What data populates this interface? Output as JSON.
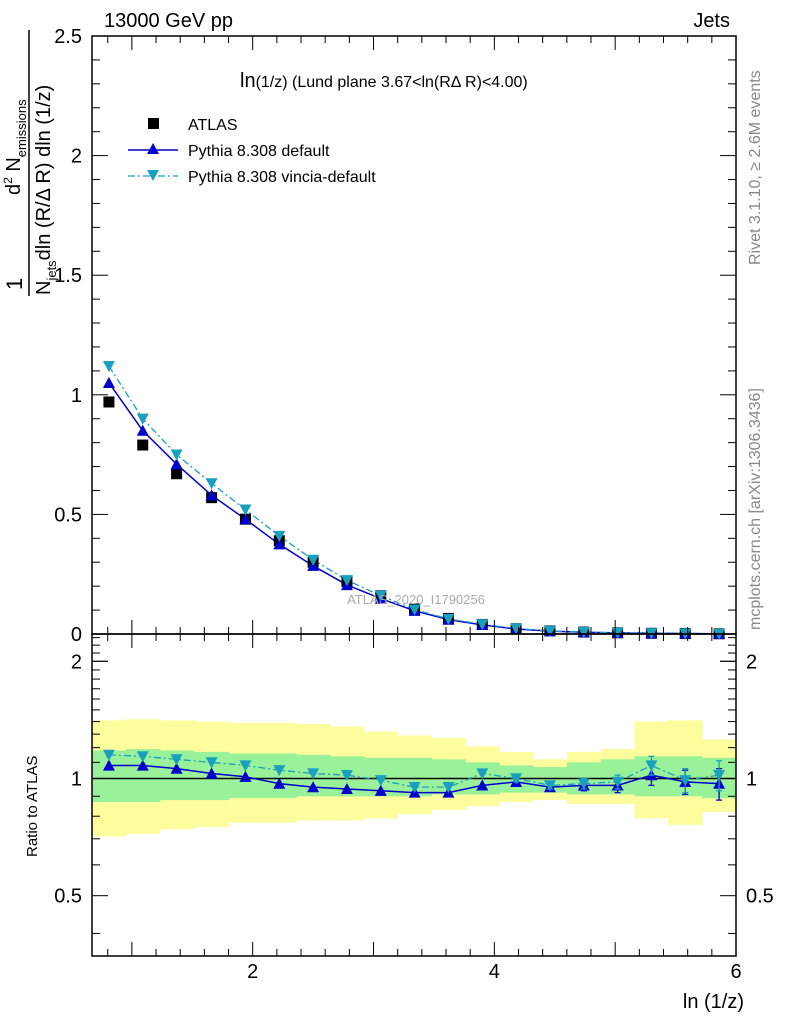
{
  "header": {
    "left": "13000 GeV pp",
    "right": "Jets"
  },
  "side_text": {
    "top": "Rivet 3.1.10, ≥ 2.6M events",
    "bottom": "mcplots.cern.ch [arXiv:1306.3436]"
  },
  "watermark": "ATLAS_2020_I1790256",
  "annotation": {
    "main": "ln",
    "sub": "(1/z)",
    "rest": " (Lund plane 3.67<ln(RΔ R)<4.00)"
  },
  "ylabel_main": {
    "frac_one": "1",
    "denominator": "N",
    "denominator_sub": "jets",
    "denominator_rest": "dln (R/Δ R) dln (1/z)",
    "numerator": "d",
    "numerator_sup": "2",
    "numerator_rest": " N",
    "numerator_sub": "emissions"
  },
  "ylabel_ratio": "Ratio to ATLAS",
  "xlabel": "ln (1/z)",
  "colors": {
    "data": "#000000",
    "pythia_default": "#0000cc",
    "pythia_vincia": "#1a9fbf",
    "band_inner": "#99f299",
    "band_outer": "#fdfd9d"
  },
  "chart_data": [
    {
      "type": "scatter",
      "panel": "main",
      "xlim": [
        0.67,
        6.0
      ],
      "ylim": [
        0,
        2.5
      ],
      "xticks": [
        2,
        4,
        6
      ],
      "yticks": [
        0,
        0.5,
        1,
        1.5,
        2,
        2.5
      ],
      "ytick_labels": [
        "0",
        "0.5",
        "1",
        "1.5",
        "2",
        "2.5"
      ],
      "legend_position": "top-left",
      "x": [
        0.81,
        1.09,
        1.37,
        1.66,
        1.94,
        2.22,
        2.5,
        2.78,
        3.06,
        3.34,
        3.62,
        3.9,
        4.18,
        4.46,
        4.74,
        5.02,
        5.3,
        5.58,
        5.86
      ],
      "series": [
        {
          "name": "ATLAS",
          "marker": "square",
          "values": [
            0.97,
            0.79,
            0.67,
            0.57,
            0.48,
            0.39,
            0.3,
            0.22,
            0.16,
            0.105,
            0.065,
            0.04,
            0.022,
            0.013,
            0.008,
            0.005,
            0.003,
            0.002,
            0.001
          ]
        },
        {
          "name": "Pythia 8.308 default",
          "marker": "triangle-up",
          "line": "solid",
          "values": [
            1.05,
            0.85,
            0.71,
            0.58,
            0.48,
            0.375,
            0.285,
            0.205,
            0.148,
            0.097,
            0.06,
            0.038,
            0.021,
            0.012,
            0.0075,
            0.0048,
            0.0031,
            0.0019,
            0.001
          ]
        },
        {
          "name": "Pythia 8.308 vincia-default",
          "marker": "triangle-down",
          "line": "dashdot",
          "values": [
            1.12,
            0.9,
            0.75,
            0.63,
            0.52,
            0.41,
            0.31,
            0.225,
            0.16,
            0.102,
            0.063,
            0.041,
            0.023,
            0.013,
            0.0082,
            0.0052,
            0.0034,
            0.0021,
            0.0011
          ]
        }
      ]
    },
    {
      "type": "line",
      "panel": "ratio",
      "ylabel": "Ratio to ATLAS",
      "xlabel": "ln (1/z)",
      "xlim": [
        0.67,
        6.0
      ],
      "ylim": [
        0.35,
        2.35
      ],
      "yticks": [
        0.5,
        1,
        2
      ],
      "ytick_labels": [
        "0.5",
        "1",
        "2"
      ],
      "log_y": true,
      "xticks": [
        2,
        4,
        6
      ],
      "xtick_labels": [
        "2",
        "4",
        "6"
      ],
      "bin_edges": [
        0.67,
        0.95,
        1.23,
        1.51,
        1.8,
        2.08,
        2.36,
        2.64,
        2.92,
        3.2,
        3.48,
        3.76,
        4.04,
        4.32,
        4.6,
        4.88,
        5.16,
        5.44,
        5.72,
        6.0
      ],
      "band_inner": {
        "lo": [
          0.87,
          0.87,
          0.88,
          0.88,
          0.89,
          0.89,
          0.9,
          0.9,
          0.9,
          0.9,
          0.91,
          0.91,
          0.92,
          0.92,
          0.91,
          0.91,
          0.9,
          0.9,
          0.89
        ],
        "hi": [
          1.18,
          1.19,
          1.18,
          1.17,
          1.16,
          1.16,
          1.15,
          1.14,
          1.13,
          1.13,
          1.12,
          1.1,
          1.08,
          1.07,
          1.1,
          1.12,
          1.14,
          1.14,
          1.13
        ]
      },
      "band_outer": {
        "lo": [
          0.71,
          0.72,
          0.74,
          0.75,
          0.77,
          0.77,
          0.78,
          0.78,
          0.79,
          0.81,
          0.83,
          0.85,
          0.87,
          0.88,
          0.86,
          0.86,
          0.79,
          0.76,
          0.82
        ],
        "hi": [
          1.41,
          1.42,
          1.41,
          1.4,
          1.39,
          1.39,
          1.38,
          1.36,
          1.32,
          1.29,
          1.27,
          1.21,
          1.17,
          1.12,
          1.17,
          1.19,
          1.4,
          1.41,
          1.26
        ]
      },
      "x": [
        0.81,
        1.09,
        1.37,
        1.66,
        1.94,
        2.22,
        2.5,
        2.78,
        3.06,
        3.34,
        3.62,
        3.9,
        4.18,
        4.46,
        4.74,
        5.02,
        5.3,
        5.58,
        5.86
      ],
      "series": [
        {
          "name": "Pythia 8.308 default",
          "marker": "triangle-up",
          "line": "solid",
          "values": [
            1.08,
            1.08,
            1.06,
            1.03,
            1.01,
            0.97,
            0.95,
            0.94,
            0.93,
            0.92,
            0.92,
            0.96,
            0.98,
            0.95,
            0.96,
            0.96,
            1.02,
            0.98,
            0.97
          ],
          "errors": [
            0.01,
            0.01,
            0.01,
            0.01,
            0.01,
            0.01,
            0.01,
            0.01,
            0.01,
            0.01,
            0.01,
            0.01,
            0.02,
            0.02,
            0.03,
            0.04,
            0.06,
            0.07,
            0.09
          ]
        },
        {
          "name": "Pythia 8.308 vincia-default",
          "marker": "triangle-down",
          "line": "dashdot",
          "values": [
            1.15,
            1.14,
            1.12,
            1.1,
            1.08,
            1.05,
            1.03,
            1.02,
            0.99,
            0.95,
            0.95,
            1.03,
            1.0,
            0.96,
            0.97,
            0.98,
            1.08,
            0.99,
            1.02
          ],
          "errors": [
            0.01,
            0.01,
            0.01,
            0.01,
            0.01,
            0.01,
            0.01,
            0.01,
            0.01,
            0.01,
            0.01,
            0.01,
            0.02,
            0.02,
            0.03,
            0.04,
            0.06,
            0.07,
            0.09
          ]
        }
      ]
    }
  ]
}
